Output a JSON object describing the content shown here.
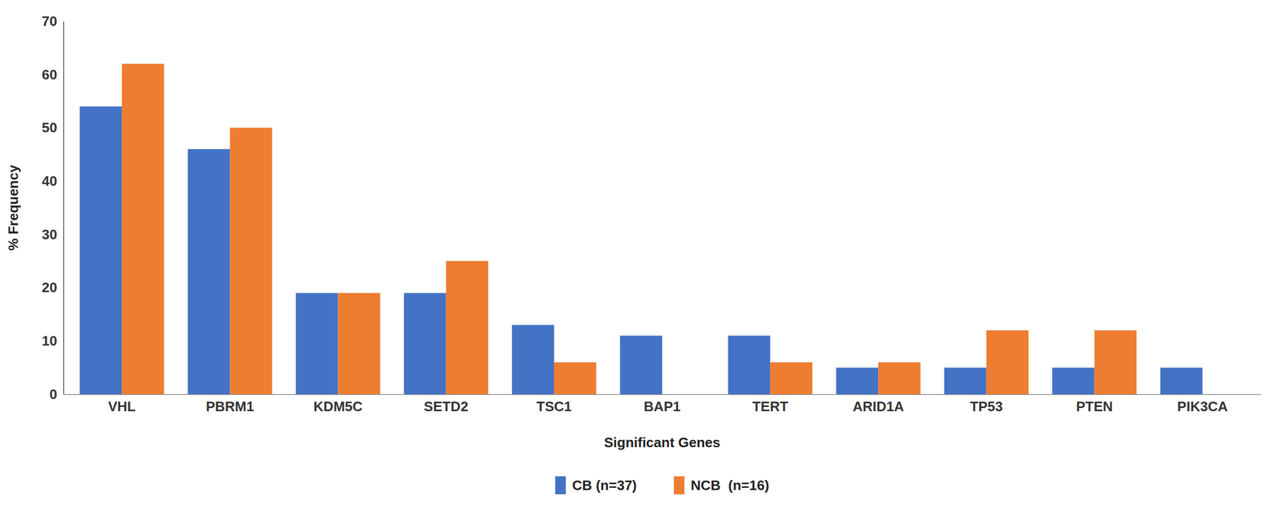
{
  "chart_data": {
    "type": "bar",
    "xlabel": "Significant Genes",
    "ylabel": "% Frequency",
    "categories": [
      "VHL",
      "PBRM1",
      "KDM5C",
      "SETD2",
      "TSC1",
      "BAP1",
      "TERT",
      "ARID1A",
      "TP53",
      "PTEN",
      "PIK3CA"
    ],
    "series": [
      {
        "name": "CB (n=37)",
        "color": "#4472C4",
        "values": [
          54,
          46,
          19,
          19,
          13,
          11,
          11,
          5,
          5,
          5,
          5
        ]
      },
      {
        "name": "NCB  (n=16)",
        "color": "#ED7D31",
        "values": [
          62,
          50,
          19,
          25,
          6,
          0,
          6,
          6,
          12,
          12,
          0
        ]
      }
    ],
    "ylim": [
      0,
      70
    ],
    "yticks": [
      0,
      10,
      20,
      30,
      40,
      50,
      60,
      70
    ],
    "grid": false,
    "legend": "bottom"
  }
}
